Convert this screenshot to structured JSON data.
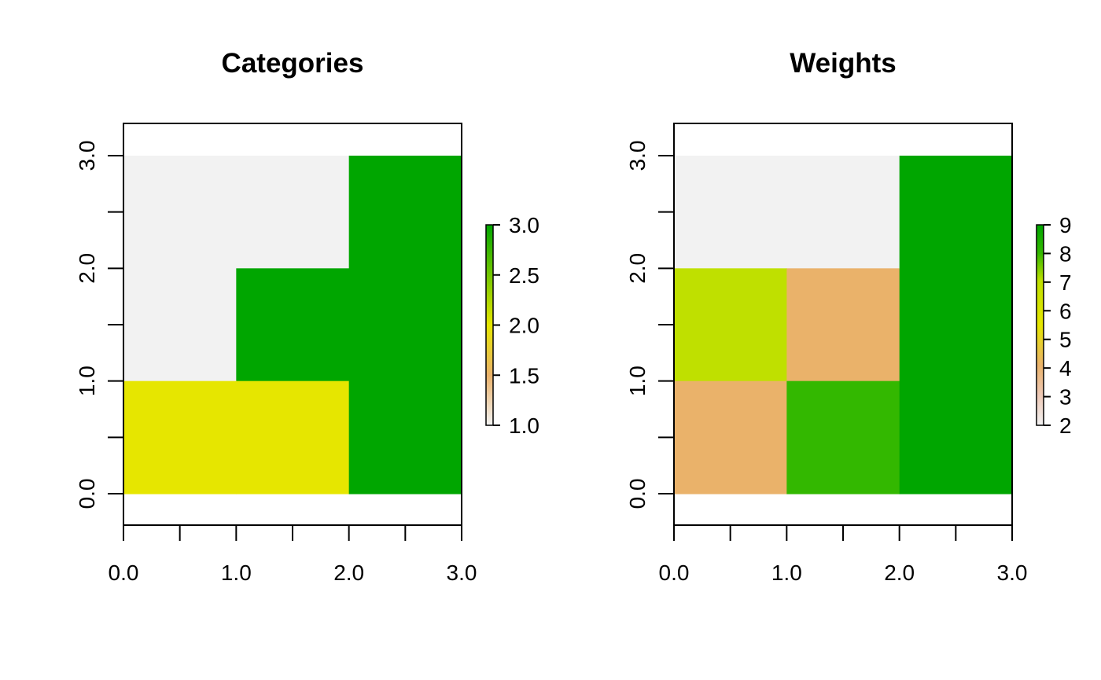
{
  "chart_data": [
    {
      "type": "heatmap",
      "title": "Categories",
      "xlabel": "",
      "ylabel": "",
      "xlim": [
        0,
        3
      ],
      "ylim": [
        0,
        3
      ],
      "x_tick_labels": [
        "0.0",
        "1.0",
        "2.0",
        "3.0"
      ],
      "y_tick_labels": [
        "0.0",
        "1.0",
        "2.0",
        "3.0"
      ],
      "cells": [
        {
          "x": [
            0,
            1
          ],
          "y": [
            2,
            3
          ],
          "value": 1,
          "color": "#F2F2F2"
        },
        {
          "x": [
            1,
            2
          ],
          "y": [
            2,
            3
          ],
          "value": 1,
          "color": "#F2F2F2"
        },
        {
          "x": [
            2,
            3
          ],
          "y": [
            2,
            3
          ],
          "value": 3,
          "color": "#00A600"
        },
        {
          "x": [
            0,
            1
          ],
          "y": [
            1,
            2
          ],
          "value": 1,
          "color": "#F2F2F2"
        },
        {
          "x": [
            1,
            2
          ],
          "y": [
            1,
            2
          ],
          "value": 3,
          "color": "#00A600"
        },
        {
          "x": [
            2,
            3
          ],
          "y": [
            1,
            2
          ],
          "value": 3,
          "color": "#00A600"
        },
        {
          "x": [
            0,
            1
          ],
          "y": [
            0,
            1
          ],
          "value": 2,
          "color": "#E6E600"
        },
        {
          "x": [
            1,
            2
          ],
          "y": [
            0,
            1
          ],
          "value": 2,
          "color": "#E6E600"
        },
        {
          "x": [
            2,
            3
          ],
          "y": [
            0,
            1
          ],
          "value": 3,
          "color": "#00A600"
        }
      ],
      "legend": {
        "position": "right",
        "range": [
          1,
          3
        ],
        "tick_values": [
          1.0,
          1.5,
          2.0,
          2.5,
          3.0
        ],
        "tick_labels": [
          "1.0",
          "1.5",
          "2.0",
          "2.5",
          "3.0"
        ]
      }
    },
    {
      "type": "heatmap",
      "title": "Weights",
      "xlabel": "",
      "ylabel": "",
      "xlim": [
        0,
        3
      ],
      "ylim": [
        0,
        3
      ],
      "x_tick_labels": [
        "0.0",
        "1.0",
        "2.0",
        "3.0"
      ],
      "y_tick_labels": [
        "0.0",
        "1.0",
        "2.0",
        "3.0"
      ],
      "cells": [
        {
          "x": [
            0,
            1
          ],
          "y": [
            2,
            3
          ],
          "value": 2,
          "color": "#F2F2F2"
        },
        {
          "x": [
            1,
            2
          ],
          "y": [
            2,
            3
          ],
          "value": 2,
          "color": "#F2F2F2"
        },
        {
          "x": [
            2,
            3
          ],
          "y": [
            2,
            3
          ],
          "value": 9,
          "color": "#00A600"
        },
        {
          "x": [
            0,
            1
          ],
          "y": [
            1,
            2
          ],
          "value": 6,
          "color": "#BFE000"
        },
        {
          "x": [
            1,
            2
          ],
          "y": [
            1,
            2
          ],
          "value": 4,
          "color": "#EAB26A"
        },
        {
          "x": [
            2,
            3
          ],
          "y": [
            1,
            2
          ],
          "value": 9,
          "color": "#00A600"
        },
        {
          "x": [
            0,
            1
          ],
          "y": [
            0,
            1
          ],
          "value": 4,
          "color": "#EAB26A"
        },
        {
          "x": [
            1,
            2
          ],
          "y": [
            0,
            1
          ],
          "value": 8,
          "color": "#33B800"
        },
        {
          "x": [
            2,
            3
          ],
          "y": [
            0,
            1
          ],
          "value": 9,
          "color": "#00A600"
        }
      ],
      "legend": {
        "position": "right",
        "range": [
          2,
          9
        ],
        "tick_values": [
          2,
          3,
          4,
          5,
          6,
          7,
          8,
          9
        ],
        "tick_labels": [
          "2",
          "3",
          "4",
          "5",
          "6",
          "7",
          "8",
          "9"
        ]
      }
    }
  ],
  "colors": {
    "palette_low": "#F2F2F2",
    "palette_mid_low": "#EAB26A",
    "palette_mid": "#E6E600",
    "palette_high": "#00A600"
  }
}
